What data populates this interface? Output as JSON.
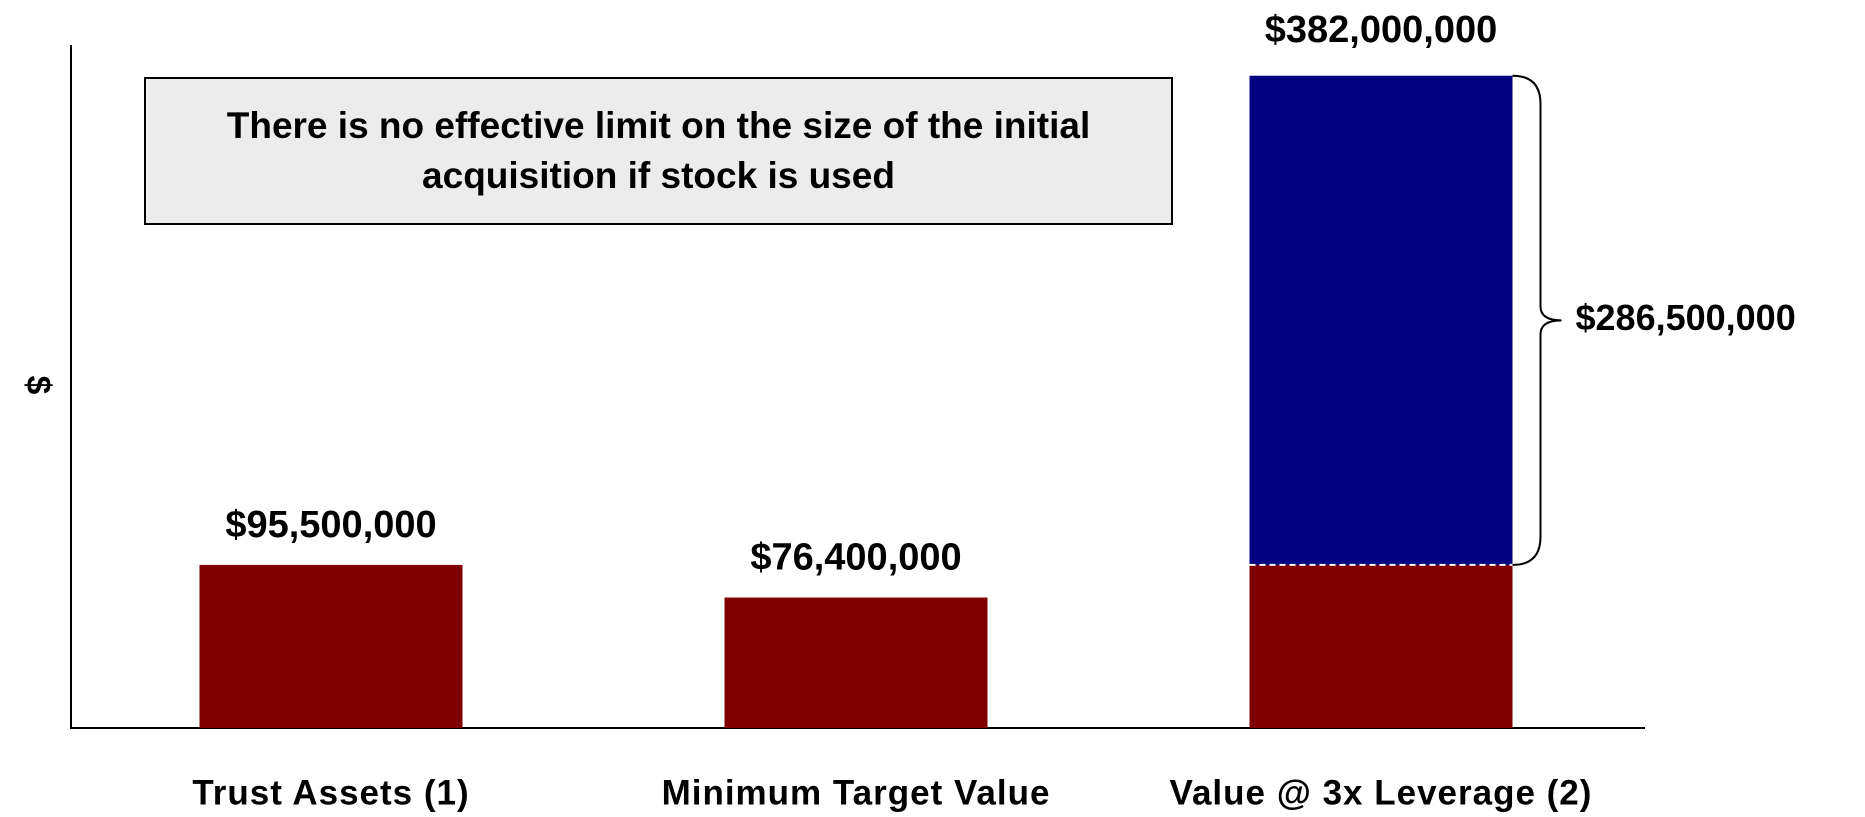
{
  "chart_data": {
    "type": "stacked_bar",
    "y_label": "$",
    "annotation": "There is no effective limit on the size of the initial acquisition if stock is used",
    "categories": [
      "Trust Assets (1)",
      "Minimum Target Value",
      "Value @ 3x Leverage (2)"
    ],
    "series": [
      {
        "color": "#800000",
        "values": [
          95500000,
          76400000,
          95500000
        ],
        "value_labels": [
          "$95,500,000",
          "$76,400,000",
          null
        ]
      },
      {
        "color": "#000080",
        "values": [
          null,
          null,
          286500000
        ],
        "value_labels": [
          null,
          null,
          "$286,500,000"
        ]
      }
    ],
    "totals": [
      null,
      null,
      382000000
    ],
    "total_labels": [
      null,
      null,
      "$382,000,000"
    ],
    "ylim": [
      0,
      400000000
    ]
  }
}
